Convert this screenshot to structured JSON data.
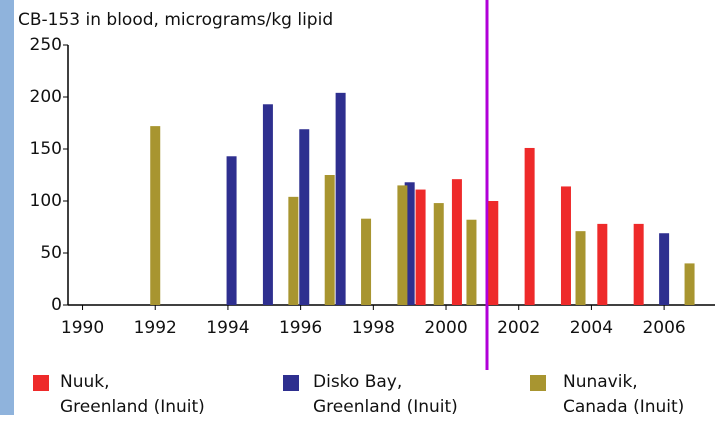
{
  "chart_data": {
    "type": "bar",
    "title": "CB-153 in blood, micrograms/kg lipid",
    "xlim": [
      1989.6,
      2007.4
    ],
    "xticks": [
      1990,
      1992,
      1994,
      1996,
      1998,
      2000,
      2002,
      2004,
      2006
    ],
    "ylim": [
      0,
      250
    ],
    "yticks": [
      0,
      50,
      100,
      150,
      200,
      250
    ],
    "series": [
      {
        "name": "Nuuk,\nGreenland (Inuit)",
        "color": "#ee2a2a",
        "x": [
          1999.3,
          2000.3,
          2001.3,
          2002.3,
          2003.3,
          2004.3,
          2005.3
        ],
        "values": [
          111,
          121,
          100,
          151,
          114,
          78,
          78
        ]
      },
      {
        "name": "Disko Bay,\nGreenland (Inuit)",
        "color": "#2e2f8f",
        "x": [
          1994.1,
          1995.1,
          1996.1,
          1997.1,
          1999.0,
          2006.0
        ],
        "values": [
          143,
          193,
          169,
          204,
          118,
          69
        ]
      },
      {
        "name": "Nunavik,\nCanada (Inuit)",
        "color": "#a89530",
        "x": [
          1992.0,
          1995.8,
          1996.8,
          1997.8,
          1998.8,
          1999.8,
          2000.7,
          2003.7,
          2006.7
        ],
        "values": [
          172,
          104,
          125,
          83,
          115,
          98,
          82,
          71,
          40
        ]
      }
    ]
  }
}
